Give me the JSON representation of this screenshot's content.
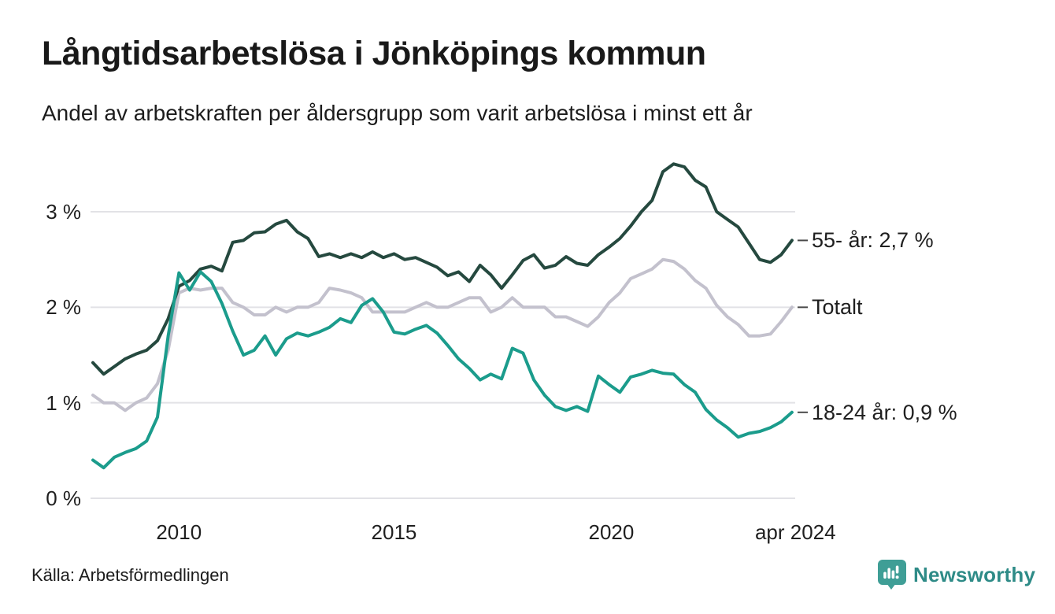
{
  "title": "Långtidsarbetslösa i Jönköpings kommun",
  "subtitle": "Andel av arbetskraften per åldersgrupp som varit arbetslösa i minst ett år",
  "source": "Källa: Arbetsförmedlingen",
  "branding": {
    "name": "Newsworthy"
  },
  "colors": {
    "background": "#ffffff",
    "title_text": "#191919",
    "axis_text": "#1f1f1f",
    "gridline": "#e2e2e6",
    "leader_dash": "#4a4a4a",
    "series_55": "#25493f",
    "series_total": "#c3c1cd",
    "series_18_24": "#1b9c8c",
    "brand_icon": "#3f9e96",
    "brand_text": "#2e8b87"
  },
  "chart_data": {
    "type": "line",
    "y_unit": "%",
    "x_start": 2008.0,
    "x_step": 0.25,
    "x_end": 2024.25,
    "ylim": [
      0,
      3.6
    ],
    "grid": true,
    "legend_position": "end-of-line-labels",
    "yticks": [
      {
        "value": 3,
        "label": "3 %"
      },
      {
        "value": 2,
        "label": "2 %"
      },
      {
        "value": 1,
        "label": "1 %"
      },
      {
        "value": 0,
        "label": "0 %"
      }
    ],
    "xticks": [
      {
        "year": 2010,
        "label": "2010"
      },
      {
        "year": 2015,
        "label": "2015"
      },
      {
        "year": 2020.05,
        "label": "2020"
      },
      {
        "year": 2024.33,
        "label": "apr 2024"
      }
    ],
    "series": [
      {
        "name": "55- år",
        "end_label": "55- år: 2,7 %",
        "last_value": 2.7,
        "color": "#25493f",
        "values": [
          1.42,
          1.3,
          1.38,
          1.46,
          1.51,
          1.55,
          1.65,
          1.88,
          2.22,
          2.28,
          2.4,
          2.43,
          2.38,
          2.68,
          2.7,
          2.78,
          2.79,
          2.87,
          2.91,
          2.79,
          2.72,
          2.53,
          2.56,
          2.52,
          2.56,
          2.52,
          2.58,
          2.52,
          2.56,
          2.5,
          2.52,
          2.47,
          2.42,
          2.33,
          2.37,
          2.27,
          2.44,
          2.34,
          2.2,
          2.34,
          2.49,
          2.55,
          2.41,
          2.44,
          2.53,
          2.46,
          2.44,
          2.55,
          2.63,
          2.72,
          2.85,
          3.0,
          3.12,
          3.42,
          3.5,
          3.47,
          3.33,
          3.26,
          3.0,
          2.92,
          2.84,
          2.67,
          2.5,
          2.47,
          2.55,
          2.7
        ]
      },
      {
        "name": "Totalt",
        "end_label": "Totalt",
        "last_value": 2.0,
        "color": "#c3c1cd",
        "values": [
          1.08,
          1.0,
          1.0,
          0.92,
          1.0,
          1.05,
          1.2,
          1.55,
          2.15,
          2.2,
          2.18,
          2.2,
          2.2,
          2.05,
          2.0,
          1.92,
          1.92,
          2.0,
          1.95,
          2.0,
          2.0,
          2.05,
          2.2,
          2.18,
          2.15,
          2.1,
          1.95,
          1.95,
          1.95,
          1.95,
          2.0,
          2.05,
          2.0,
          2.0,
          2.05,
          2.1,
          2.1,
          1.95,
          2.0,
          2.1,
          2.0,
          2.0,
          2.0,
          1.9,
          1.9,
          1.85,
          1.8,
          1.9,
          2.05,
          2.15,
          2.3,
          2.35,
          2.4,
          2.5,
          2.48,
          2.4,
          2.28,
          2.2,
          2.02,
          1.9,
          1.82,
          1.7,
          1.7,
          1.72,
          1.85,
          2.0
        ]
      },
      {
        "name": "18-24 år",
        "end_label": "18-24 år: 0,9 %",
        "last_value": 0.9,
        "color": "#1b9c8c",
        "values": [
          0.4,
          0.32,
          0.43,
          0.48,
          0.52,
          0.6,
          0.85,
          1.7,
          2.36,
          2.18,
          2.37,
          2.27,
          2.04,
          1.75,
          1.5,
          1.55,
          1.7,
          1.5,
          1.67,
          1.73,
          1.7,
          1.74,
          1.79,
          1.88,
          1.84,
          2.02,
          2.09,
          1.95,
          1.74,
          1.72,
          1.77,
          1.81,
          1.73,
          1.6,
          1.46,
          1.36,
          1.24,
          1.3,
          1.25,
          1.57,
          1.52,
          1.24,
          1.08,
          0.96,
          0.92,
          0.96,
          0.91,
          1.28,
          1.19,
          1.11,
          1.27,
          1.3,
          1.34,
          1.31,
          1.3,
          1.19,
          1.11,
          0.93,
          0.82,
          0.74,
          0.64,
          0.68,
          0.7,
          0.74,
          0.8,
          0.9
        ]
      }
    ]
  }
}
